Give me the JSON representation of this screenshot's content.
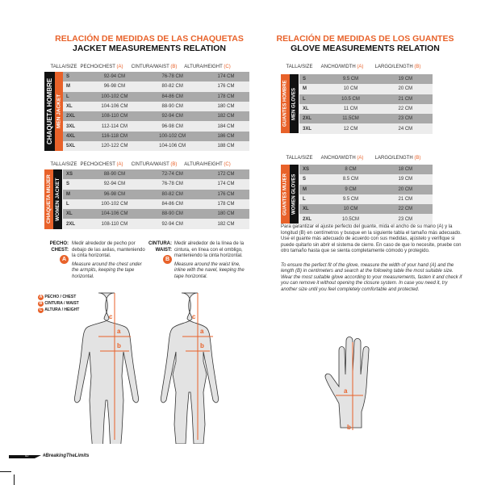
{
  "jacket": {
    "title_es": "RELACIÓN DE MEDIDAS DE LAS CHAQUETAS",
    "title_en": "JACKET MEASUREMENTS RELATION",
    "headers": [
      "TALLA/SIZE",
      "PECHO/CHEST",
      "CINTURA/WAIST",
      "ALTURA/HEIGHT"
    ],
    "header_marks": [
      "",
      "(A)",
      "(B)",
      "(C)"
    ],
    "men": {
      "label_es": "CHAQUETA HOMBRE",
      "label_en": "MEN JACKET",
      "rows": [
        [
          "S",
          "92-94 CM",
          "76-78 CM",
          "174 CM"
        ],
        [
          "M",
          "96-98 CM",
          "80-82 CM",
          "176 CM"
        ],
        [
          "L",
          "100-102 CM",
          "84-86 CM",
          "178 CM"
        ],
        [
          "XL",
          "104-106 CM",
          "88-90 CM",
          "180 CM"
        ],
        [
          "2XL",
          "108-110 CM",
          "92-94 CM",
          "182 CM"
        ],
        [
          "3XL",
          "112-114 CM",
          "96-98 CM",
          "184 CM"
        ],
        [
          "4XL",
          "116-118 CM",
          "100-102 CM",
          "186 CM"
        ],
        [
          "5XL",
          "120-122 CM",
          "104-106 CM",
          "188 CM"
        ]
      ]
    },
    "women": {
      "label_es": "CHAQUETA MUJER",
      "label_en": "WOMEN JACKET",
      "rows": [
        [
          "XS",
          "88-90 CM",
          "72-74 CM",
          "172 CM"
        ],
        [
          "S",
          "92-94 CM",
          "76-78 CM",
          "174 CM"
        ],
        [
          "M",
          "96-98 CM",
          "80-82 CM",
          "176 CM"
        ],
        [
          "L",
          "100-102 CM",
          "84-86 CM",
          "178 CM"
        ],
        [
          "XL",
          "104-106 CM",
          "88-90 CM",
          "180 CM"
        ],
        [
          "2XL",
          "108-110 CM",
          "92-94 CM",
          "182 CM"
        ]
      ]
    },
    "chest": {
      "label": "PECHO:",
      "label_en": "CHEST:",
      "badge": "A",
      "text_es": "Medir alrededor de pecho por debajo de las axilas, manteniendo la cinta horizontal.",
      "text_en": "Measure around the chest under the armpits, keeping the tape horizontal."
    },
    "waist": {
      "label": "CINTURA:",
      "label_en": "WAIST:",
      "badge": "B",
      "text_es": "Medir alrededor de la línea de la cintura, en línea con el ombligo, manteniendo la cinta horizontal.",
      "text_en": "Measure around the waist line, inline with the navel, keeping the tape horizontal."
    },
    "legend": [
      {
        "badge": "A",
        "label": "PECHO / CHEST"
      },
      {
        "badge": "B",
        "label": "CINTURA / WAIST"
      },
      {
        "badge": "C",
        "label": "ALTURA / HEIGHT"
      }
    ],
    "figure_marks": [
      "c",
      "a",
      "b"
    ]
  },
  "glove": {
    "title_es": "RELACIÓN DE MEDIDAS DE LOS GUANTES",
    "title_en": "GLOVE MEASUREMENTS RELATION",
    "headers": [
      "TALLA/SIZE",
      "ANCHO/WIDTH",
      "LARGO/LENGTH"
    ],
    "header_marks": [
      "",
      "(A)",
      "(B)"
    ],
    "men": {
      "label_es": "GUANTES HOMBRE",
      "label_en": "MEN GLOVES",
      "rows": [
        [
          "S",
          "9.5 CM",
          "19 CM"
        ],
        [
          "M",
          "10 CM",
          "20 CM"
        ],
        [
          "L",
          "10.5 CM",
          "21 CM"
        ],
        [
          "XL",
          "11 CM",
          "22 CM"
        ],
        [
          "2XL",
          "11.5CM",
          "23 CM"
        ],
        [
          "3XL",
          "12 CM",
          "24 CM"
        ]
      ]
    },
    "women": {
      "label_es": "GUANTES MUJER",
      "label_en": "WOMEN GLOVES",
      "rows": [
        [
          "XS",
          "8 CM",
          "18 CM"
        ],
        [
          "S",
          "8.5 CM",
          "19 CM"
        ],
        [
          "M",
          "9 CM",
          "20 CM"
        ],
        [
          "L",
          "9.5 CM",
          "21 CM"
        ],
        [
          "XL",
          "10 CM",
          "22 CM"
        ],
        [
          "2XL",
          "10.5CM",
          "23 CM"
        ]
      ]
    },
    "text_es": "Para garantizar el ajuste perfecto del guante, mida el ancho de su mano (A) y la longitud (B) en centímetros y busque en la siguiente tabla el tamaño más adecuado. Use el guante más adecuado de acuerdo con sus medidas, ajústelo y verifique si puede quitarlo sin abrir el sistema de cierre. En caso de que lo necesite, pruebe con otro tamaño hasta que se sienta completamente cómodo y protegido.",
    "text_en": "To ensure the perfect fit of the glove, measure the width of your hand (A) and the length (B) in centimeters and search at the following table the most suitable size. Wear the most suitable glove according to your measurements, fasten it and check if you can remove it without opening the closure system. In case you need it, try another size until you feel completely comfortable and protected.",
    "figure_marks": [
      "a",
      "b"
    ]
  },
  "footer": {
    "page": "52",
    "hashtag": "#BreakingTheLimits"
  },
  "colors": {
    "accent": "#e8622a",
    "dark_row": "#a9a9a9",
    "light_row": "#ececec"
  }
}
